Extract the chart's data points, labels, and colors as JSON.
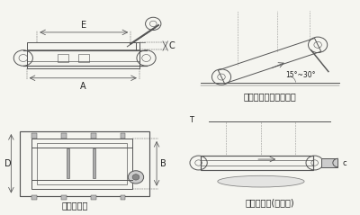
{
  "bg_color": "#f5f5f0",
  "panel_bg": "#ffffff",
  "line_color": "#555555",
  "dim_color": "#333333",
  "text_color": "#222222",
  "labels": {
    "top_left_caption": "",
    "bottom_left_caption": "外形尺寸图",
    "top_right_caption": "安装示意图（倾斜式）",
    "bottom_right_caption": "安装示意图(水平式)"
  },
  "dim_labels": {
    "A": "A",
    "B": "B",
    "C": "C",
    "D": "D",
    "E": "E"
  },
  "angle_label": "15°~30°"
}
